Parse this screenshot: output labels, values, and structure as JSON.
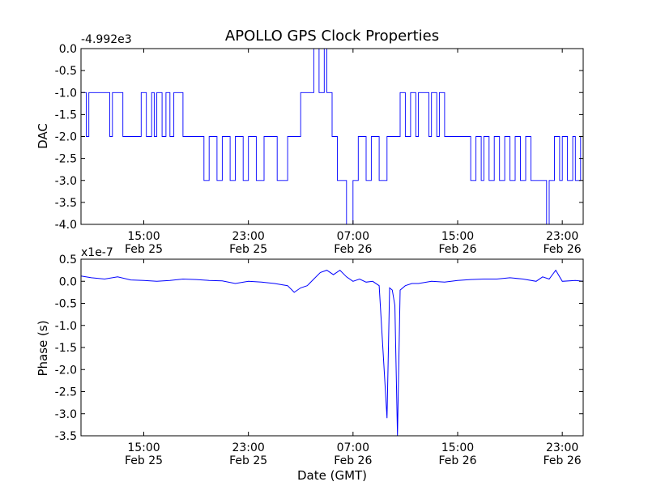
{
  "title": "APOLLO GPS Clock Properties",
  "series_color": "#0000ff",
  "chart_data": [
    {
      "type": "line",
      "name": "DAC",
      "ylabel": "DAC",
      "xlabel": "",
      "offset_label": "-4.992e3",
      "ylim": [
        -4.0,
        0.0
      ],
      "xlim_hours": [
        10.2,
        48.6
      ],
      "y_ticks": [
        "0.0",
        "-0.5",
        "-1.0",
        "-1.5",
        "-2.0",
        "-2.5",
        "-3.0",
        "-3.5",
        "-4.0"
      ],
      "x_ticks": [
        {
          "hours": 15,
          "time": "15:00",
          "date": "Feb 25"
        },
        {
          "hours": 23,
          "time": "23:00",
          "date": "Feb 25"
        },
        {
          "hours": 31,
          "time": "07:00",
          "date": "Feb 26"
        },
        {
          "hours": 39,
          "time": "15:00",
          "date": "Feb 26"
        },
        {
          "hours": 47,
          "time": "23:00",
          "date": "Feb 26"
        }
      ],
      "x_hours": [
        10.2,
        10.6,
        10.8,
        12.4,
        12.6,
        13.4,
        14.8,
        15.2,
        15.6,
        15.8,
        16.0,
        16.4,
        16.7,
        17.0,
        17.3,
        18.0,
        18.4,
        18.8,
        19.6,
        20.0,
        20.6,
        21.0,
        21.6,
        22.0,
        22.6,
        23.0,
        23.6,
        24.2,
        24.8,
        25.2,
        26.0,
        26.4,
        27.0,
        27.6,
        28.0,
        28.4,
        28.8,
        29.0,
        29.4,
        29.8,
        30.0,
        30.5,
        31.0,
        31.4,
        32.0,
        32.4,
        33.0,
        33.6,
        34.0,
        34.6,
        35.0,
        35.4,
        35.8,
        36.0,
        36.4,
        36.8,
        37.0,
        37.4,
        37.6,
        38.0,
        38.5,
        39.0,
        39.5,
        40.0,
        40.4,
        40.8,
        41.0,
        41.4,
        41.8,
        42.2,
        42.6,
        43.0,
        43.4,
        43.8,
        44.2,
        44.6,
        45.0,
        45.4,
        45.8,
        46.0,
        46.4,
        46.8,
        47.0,
        47.4,
        47.8,
        48.0,
        48.4,
        48.6
      ],
      "values": [
        -1.0,
        -2.0,
        -1.0,
        -2.0,
        -1.0,
        -2.0,
        -1.0,
        -2.0,
        -1.0,
        -2.0,
        -1.0,
        -2.0,
        -1.0,
        -2.0,
        -1.0,
        -2.0,
        -2.0,
        -2.0,
        -3.0,
        -2.0,
        -3.0,
        -2.0,
        -3.0,
        -2.0,
        -3.0,
        -2.0,
        -3.0,
        -2.0,
        -2.0,
        -3.0,
        -2.0,
        -2.0,
        -1.0,
        -1.0,
        0.0,
        -1.0,
        0.0,
        -1.0,
        -2.0,
        -3.0,
        -3.0,
        -4.0,
        -3.0,
        -2.0,
        -3.0,
        -2.0,
        -3.0,
        -2.0,
        -2.0,
        -1.0,
        -2.0,
        -1.0,
        -2.0,
        -1.0,
        -1.0,
        -2.0,
        -1.0,
        -2.0,
        -1.0,
        -2.0,
        -2.0,
        -2.0,
        -2.0,
        -3.0,
        -2.0,
        -3.0,
        -2.0,
        -3.0,
        -2.0,
        -3.0,
        -2.0,
        -3.0,
        -2.0,
        -3.0,
        -2.0,
        -3.0,
        -3.0,
        -3.0,
        -4.0,
        -3.0,
        -2.0,
        -3.0,
        -2.0,
        -3.0,
        -2.0,
        -3.0,
        -2.0,
        -3.0
      ]
    },
    {
      "type": "line",
      "name": "Phase",
      "ylabel": "Phase (s)",
      "xlabel": "Date (GMT)",
      "offset_label": "x1e-7",
      "ylim": [
        -3.5,
        0.5
      ],
      "xlim_hours": [
        10.2,
        48.6
      ],
      "y_ticks": [
        "0.5",
        "0.0",
        "-0.5",
        "-1.0",
        "-1.5",
        "-2.0",
        "-2.5",
        "-3.0",
        "-3.5"
      ],
      "x_ticks": [
        {
          "hours": 15,
          "time": "15:00",
          "date": "Feb 25"
        },
        {
          "hours": 23,
          "time": "23:00",
          "date": "Feb 25"
        },
        {
          "hours": 31,
          "time": "07:00",
          "date": "Feb 26"
        },
        {
          "hours": 39,
          "time": "15:00",
          "date": "Feb 26"
        },
        {
          "hours": 47,
          "time": "23:00",
          "date": "Feb 26"
        }
      ],
      "x_hours": [
        10.2,
        11.0,
        12.0,
        13.0,
        14.0,
        15.0,
        16.0,
        17.0,
        18.0,
        19.0,
        20.0,
        21.0,
        22.0,
        23.0,
        24.0,
        25.0,
        26.0,
        26.5,
        27.0,
        27.5,
        28.0,
        28.5,
        29.0,
        29.5,
        30.0,
        30.5,
        31.0,
        31.5,
        32.0,
        32.5,
        33.0,
        33.6,
        33.8,
        34.0,
        34.2,
        34.4,
        34.6,
        35.0,
        35.5,
        36.0,
        37.0,
        38.0,
        39.0,
        40.0,
        41.0,
        42.0,
        43.0,
        44.0,
        45.0,
        45.5,
        46.0,
        46.5,
        47.0,
        48.0,
        48.6
      ],
      "values": [
        0.12,
        0.08,
        0.05,
        0.1,
        0.03,
        0.02,
        0.0,
        0.02,
        0.05,
        0.04,
        0.02,
        0.01,
        -0.05,
        0.0,
        -0.02,
        -0.05,
        -0.1,
        -0.25,
        -0.15,
        -0.1,
        0.05,
        0.2,
        0.25,
        0.15,
        0.25,
        0.1,
        0.0,
        0.05,
        -0.02,
        0.0,
        -0.1,
        -3.1,
        -0.15,
        -0.2,
        -0.55,
        -3.5,
        -0.2,
        -0.1,
        -0.05,
        -0.05,
        0.0,
        -0.02,
        0.02,
        0.04,
        0.05,
        0.05,
        0.08,
        0.05,
        0.0,
        0.1,
        0.05,
        0.25,
        0.0,
        0.02,
        0.0
      ]
    }
  ]
}
